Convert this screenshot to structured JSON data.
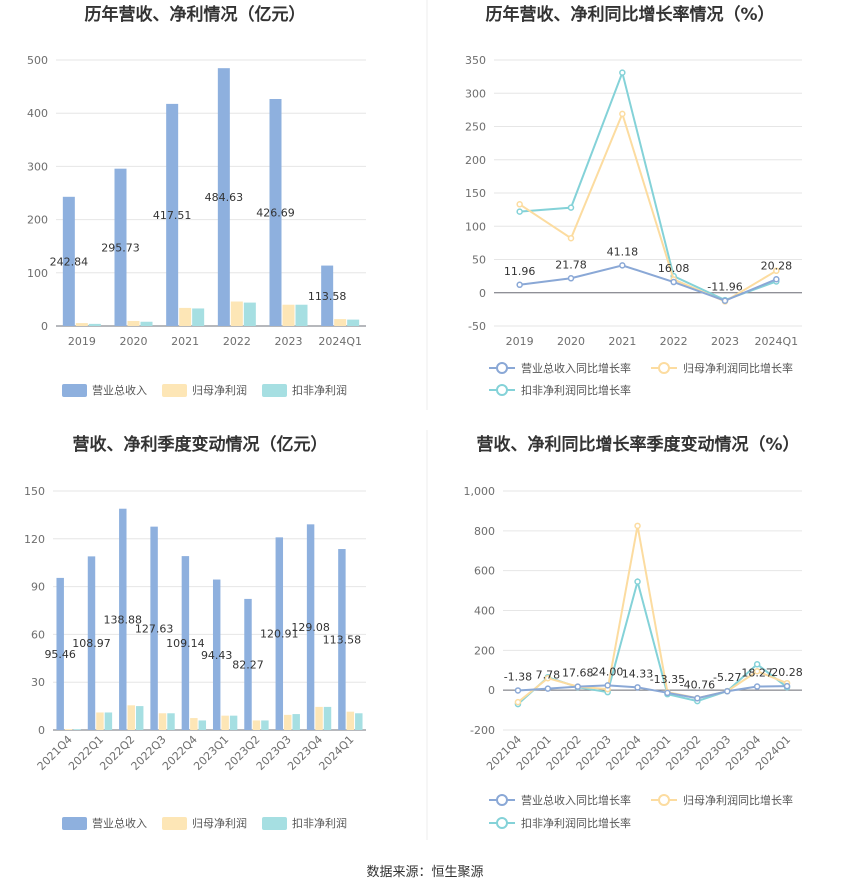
{
  "colors": {
    "revenue": "#8eb0de",
    "net_profit": "#fde6b6",
    "deducted_profit": "#a6dfe2",
    "revenue_line": "#8aa8d6",
    "net_line": "#fcdca0",
    "deducted_line": "#84d2d8",
    "grid": "#e6e6e6",
    "axis": "#6e7079"
  },
  "source_text": "数据来源：恒生聚源",
  "chart_data": [
    {
      "type": "bar",
      "title": "历年营收、净利情况（亿元）",
      "categories": [
        "2019",
        "2020",
        "2021",
        "2022",
        "2023",
        "2024Q1"
      ],
      "ylim": [
        0,
        500
      ],
      "yticks": [
        0,
        100,
        200,
        300,
        400,
        500
      ],
      "series": [
        {
          "name": "营业总收入",
          "values": [
            242.84,
            295.73,
            417.51,
            484.63,
            426.69,
            113.58
          ]
        },
        {
          "name": "归母净利润",
          "values": [
            5.5,
            9.5,
            34,
            46,
            40,
            13
          ]
        },
        {
          "name": "扣非净利润",
          "values": [
            4,
            8,
            33,
            44,
            40,
            12
          ]
        }
      ],
      "data_labels": [
        "242.84",
        "295.73",
        "417.51",
        "484.63",
        "426.69",
        "113.58"
      ],
      "legend_position": "bottom"
    },
    {
      "type": "line",
      "title": "历年营收、净利同比增长率情况（%）",
      "categories": [
        "2019",
        "2020",
        "2021",
        "2022",
        "2023",
        "2024Q1"
      ],
      "ylim": [
        -50,
        350
      ],
      "yticks": [
        -50,
        0,
        50,
        100,
        150,
        200,
        250,
        300,
        350
      ],
      "series": [
        {
          "name": "营业总收入同比增长率",
          "values": [
            11.96,
            21.78,
            41.18,
            16.08,
            -11.96,
            20.28
          ]
        },
        {
          "name": "归母净利润同比增长率",
          "values": [
            133,
            82,
            269,
            20,
            -13,
            33
          ]
        },
        {
          "name": "扣非净利润同比增长率",
          "values": [
            122,
            128,
            331,
            25,
            -11,
            17
          ]
        }
      ],
      "data_labels": [
        "11.96",
        "21.78",
        "41.18",
        "16.08",
        "-11.96",
        "20.28"
      ],
      "legend_position": "bottom"
    },
    {
      "type": "bar",
      "title": "营收、净利季度变动情况（亿元）",
      "categories": [
        "2021Q4",
        "2022Q1",
        "2022Q2",
        "2022Q3",
        "2022Q4",
        "2023Q1",
        "2023Q2",
        "2023Q3",
        "2023Q4",
        "2024Q1"
      ],
      "ylim": [
        0,
        150
      ],
      "yticks": [
        0,
        30,
        60,
        90,
        120,
        150
      ],
      "series": [
        {
          "name": "营业总收入",
          "values": [
            95.46,
            108.97,
            138.88,
            127.63,
            109.14,
            94.43,
            82.27,
            120.91,
            129.08,
            113.58
          ]
        },
        {
          "name": "归母净利润",
          "values": [
            0.5,
            11,
            15.5,
            10.5,
            7.5,
            9,
            6,
            9.5,
            14.5,
            11.5
          ]
        },
        {
          "name": "扣非净利润",
          "values": [
            0.5,
            11,
            15,
            10.5,
            6,
            9,
            6,
            10,
            14.5,
            10.5
          ]
        }
      ],
      "data_labels": [
        "95.46",
        "108.97",
        "138.88",
        "127.63",
        "109.14",
        "94.43",
        "82.27",
        "120.91",
        "129.08",
        "113.58"
      ],
      "legend_position": "bottom"
    },
    {
      "type": "line",
      "title": "营收、净利同比增长率季度变动情况（%）",
      "categories": [
        "2021Q4",
        "2022Q1",
        "2022Q2",
        "2022Q3",
        "2022Q4",
        "2023Q1",
        "2023Q2",
        "2023Q3",
        "2023Q4",
        "2024Q1"
      ],
      "ylim": [
        -200,
        1000
      ],
      "yticks": [
        -200,
        0,
        200,
        400,
        600,
        800,
        1000
      ],
      "ytick_labels": [
        "-200",
        "0",
        "200",
        "400",
        "600",
        "800",
        "1,000"
      ],
      "series": [
        {
          "name": "营业总收入同比增长率",
          "values": [
            -1.38,
            7.78,
            17.68,
            24.0,
            14.33,
            -13.35,
            -40.76,
            -5.27,
            18.27,
            20.28
          ]
        },
        {
          "name": "归母净利润同比增长率",
          "values": [
            -60,
            60,
            18,
            5,
            825,
            -10,
            -40,
            -5,
            95,
            35
          ]
        },
        {
          "name": "扣非净利润同比增长率",
          "values": [
            -70,
            65,
            15,
            -10,
            545,
            -20,
            -55,
            -5,
            130,
            15
          ]
        }
      ],
      "data_labels": [
        "-1.38",
        "7.78",
        "17.68",
        "24.00",
        "14.33",
        "-13.35",
        "-40.76",
        "-5.27",
        "18.27",
        "20.28"
      ],
      "legend_position": "bottom"
    }
  ]
}
